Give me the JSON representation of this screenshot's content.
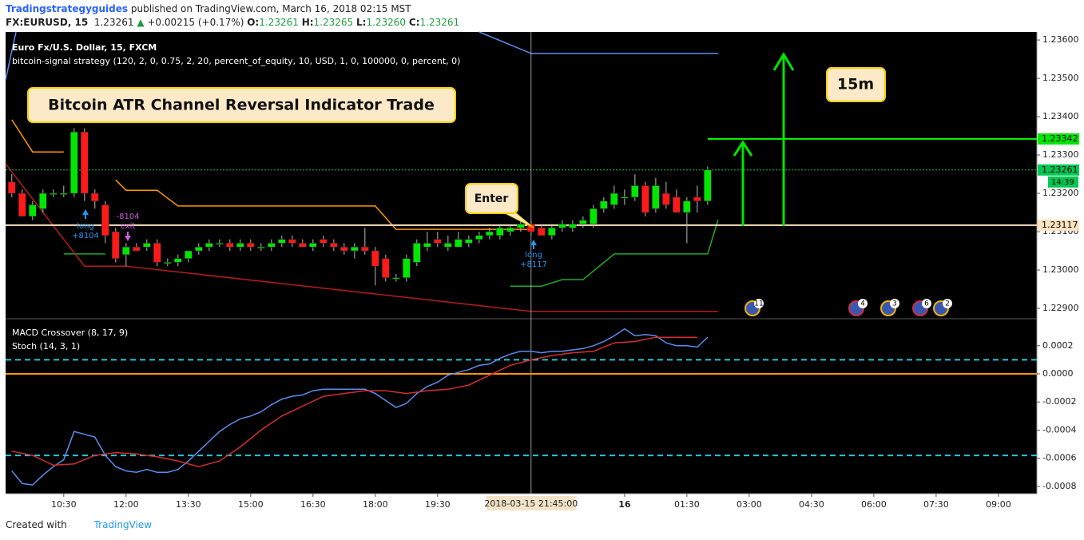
{
  "header": {
    "author": "Tradingstrategyguides",
    "published": "published on TradingView.com, March 16, 2018 02:15 MST",
    "symbol": "FX:EURUSD, 15",
    "last": "1.23261",
    "change": "+0.00215 (+0.17%)",
    "ohlc": [
      {
        "label": "O:",
        "value": "1.23261"
      },
      {
        "label": "H:",
        "value": "1.23265"
      },
      {
        "label": "L:",
        "value": "1.23260"
      },
      {
        "label": "C:",
        "value": "1.23261"
      }
    ]
  },
  "footer": {
    "text": "Created with",
    "brand": "TradingView"
  },
  "chart_data": [
    {
      "type": "candlestick",
      "title": "Euro Fx/U.S. Dollar, 15, FXCM",
      "subtitle": "bitcoin-signal strategy (120, 2, 0, 0.75, 2, 20, percent_of_equity, 10, USD, 1, 0, 100000, 0, percent, 0)",
      "x": [
        0,
        1,
        2,
        3,
        4,
        5,
        6,
        7,
        8,
        9,
        10,
        11,
        12,
        13,
        14,
        15,
        16,
        17,
        18,
        19,
        20,
        21,
        22,
        23,
        24,
        25,
        26,
        27,
        28,
        29,
        30,
        31,
        32,
        33,
        34,
        35,
        36,
        37,
        38,
        39,
        40,
        41,
        42,
        43,
        44,
        45,
        46,
        47,
        48,
        49,
        50,
        51,
        52,
        53,
        54,
        55,
        56,
        57,
        58,
        59,
        60,
        61,
        62,
        63,
        64,
        65,
        66,
        67
      ],
      "open": [
        1.2323,
        1.232,
        1.2314,
        1.2316,
        1.232,
        1.232,
        1.232,
        1.2336,
        1.232,
        1.2317,
        1.231,
        1.2304,
        1.2306,
        1.2306,
        1.2307,
        1.2302,
        1.2302,
        1.2303,
        1.2305,
        1.2306,
        1.2307,
        1.2307,
        1.2306,
        1.2307,
        1.2306,
        1.2306,
        1.2307,
        1.2308,
        1.2307,
        1.2306,
        1.2308,
        1.2307,
        1.2306,
        1.2305,
        1.2306,
        1.2305,
        1.2303,
        1.2298,
        1.2298,
        1.2302,
        1.2306,
        1.2308,
        1.2306,
        1.2306,
        1.2307,
        1.2308,
        1.2309,
        1.2309,
        1.231,
        1.2311,
        1.2312,
        1.2311,
        1.2309,
        1.2311,
        1.2311,
        1.2312,
        1.2312,
        1.2316,
        1.2317,
        1.2319,
        1.2319,
        1.2322,
        1.2316,
        1.232,
        1.2319,
        1.2315,
        1.2319,
        1.2318
      ],
      "high": [
        1.2325,
        1.2321,
        1.2318,
        1.2321,
        1.2321,
        1.2322,
        1.2337,
        1.2337,
        1.2321,
        1.2318,
        1.2311,
        1.2307,
        1.2307,
        1.2308,
        1.2308,
        1.2303,
        1.2304,
        1.2305,
        1.2307,
        1.2308,
        1.2308,
        1.2308,
        1.2308,
        1.2308,
        1.2307,
        1.2308,
        1.2309,
        1.2309,
        1.2308,
        1.2308,
        1.2309,
        1.2308,
        1.2307,
        1.2307,
        1.2311,
        1.2306,
        1.2304,
        1.2299,
        1.2304,
        1.2308,
        1.231,
        1.231,
        1.2309,
        1.231,
        1.2309,
        1.231,
        1.2311,
        1.2312,
        1.2312,
        1.2313,
        1.2313,
        1.2312,
        1.2312,
        1.2313,
        1.2313,
        1.2314,
        1.2317,
        1.2319,
        1.2322,
        1.2321,
        1.2325,
        1.2323,
        1.2324,
        1.2323,
        1.2321,
        1.2319,
        1.2322,
        1.2327
      ],
      "low": [
        1.2319,
        1.2314,
        1.2313,
        1.2315,
        1.2319,
        1.2319,
        1.2319,
        1.2318,
        1.2316,
        1.2307,
        1.2302,
        1.2301,
        1.2305,
        1.2305,
        1.2301,
        1.2301,
        1.2301,
        1.2302,
        1.2304,
        1.2305,
        1.2306,
        1.2305,
        1.2305,
        1.2305,
        1.2305,
        1.2305,
        1.2306,
        1.2306,
        1.2306,
        1.2305,
        1.2306,
        1.2305,
        1.2304,
        1.2303,
        1.2304,
        1.2296,
        1.2297,
        1.2297,
        1.2297,
        1.2301,
        1.2305,
        1.2306,
        1.2305,
        1.2306,
        1.2306,
        1.2307,
        1.2308,
        1.2308,
        1.2309,
        1.231,
        1.2309,
        1.2309,
        1.2308,
        1.231,
        1.231,
        1.2311,
        1.2311,
        1.2315,
        1.2316,
        1.2317,
        1.2318,
        1.2314,
        1.2315,
        1.2316,
        1.2315,
        1.2307,
        1.2315,
        1.2317
      ],
      "close": [
        1.232,
        1.2314,
        1.2317,
        1.232,
        1.232,
        1.232,
        1.2336,
        1.232,
        1.2318,
        1.2309,
        1.2303,
        1.2306,
        1.2305,
        1.2307,
        1.2302,
        1.2302,
        1.2303,
        1.2305,
        1.2306,
        1.2307,
        1.2307,
        1.2306,
        1.2307,
        1.2306,
        1.2306,
        1.2307,
        1.2308,
        1.2307,
        1.2306,
        1.2307,
        1.2307,
        1.2306,
        1.2305,
        1.2306,
        1.2305,
        1.2301,
        1.2298,
        1.2298,
        1.2303,
        1.2307,
        1.2307,
        1.2307,
        1.2307,
        1.2308,
        1.2308,
        1.2309,
        1.231,
        1.2311,
        1.2311,
        1.2312,
        1.231,
        1.2309,
        1.2311,
        1.2312,
        1.2312,
        1.2313,
        1.2316,
        1.2318,
        1.232,
        1.2319,
        1.2322,
        1.2315,
        1.2322,
        1.2317,
        1.2315,
        1.2318,
        1.2318,
        1.23261
      ],
      "up_color": "#00e600",
      "down_color": "#ff1a1a",
      "xlim": [
        -0.6,
        98.7
      ],
      "xticks": [
        {
          "value": 5,
          "label": "10:30"
        },
        {
          "value": 11,
          "label": "12:00"
        },
        {
          "value": 17,
          "label": "13:30"
        },
        {
          "value": 23,
          "label": "15:00"
        },
        {
          "value": 29,
          "label": "16:30"
        },
        {
          "value": 35,
          "label": "18:00"
        },
        {
          "value": 41,
          "label": "19:30"
        },
        {
          "value": 59,
          "label": "16"
        },
        {
          "value": 65,
          "label": "01:30"
        },
        {
          "value": 71,
          "label": "03:00"
        },
        {
          "value": 77,
          "label": "04:30"
        },
        {
          "value": 83,
          "label": "06:00"
        },
        {
          "value": 89,
          "label": "07:30"
        },
        {
          "value": 95,
          "label": "09:00"
        }
      ],
      "ylim": [
        1.22875,
        1.23621
      ],
      "yticks": [
        {
          "value": 1.229,
          "label": "1.22900"
        },
        {
          "value": 1.23,
          "label": "1.23000"
        },
        {
          "value": 1.231,
          "label": "1.23100"
        },
        {
          "value": 1.232,
          "label": "1.23200"
        },
        {
          "value": 1.233,
          "label": "1.23300"
        },
        {
          "value": 1.234,
          "label": "1.23400"
        },
        {
          "value": 1.235,
          "label": "1.23500"
        },
        {
          "value": 1.236,
          "label": "1.23600"
        }
      ],
      "overlays": [
        {
          "color": "#ff9800",
          "x": [
            0,
            2,
            5,
            8,
            10,
            11,
            14,
            16,
            35,
            37,
            50
          ],
          "values": [
            1.23392,
            1.23308,
            1.23308,
            null,
            1.23235,
            1.23208,
            1.23208,
            1.23167,
            1.23167,
            1.23106,
            1.23106
          ]
        },
        {
          "color": "#1faa2c",
          "x": [
            5,
            9,
            20,
            48,
            51,
            53,
            55,
            58,
            67,
            68
          ],
          "values": [
            1.23042,
            1.23042,
            null,
            1.22958,
            1.22958,
            1.22975,
            1.22975,
            1.23042,
            1.23042,
            1.23131
          ]
        },
        {
          "color": "#b71c1c",
          "x": [
            -0.6,
            7,
            11,
            50,
            68
          ],
          "values": [
            1.23277,
            1.2301,
            1.2301,
            1.22892,
            1.22892
          ]
        },
        {
          "color": "#5b8def",
          "x": [
            -0.6,
            0.4,
            20,
            45,
            50,
            68
          ],
          "values": [
            1.23496,
            1.23621,
            null,
            1.23621,
            1.23565,
            1.23565
          ]
        }
      ],
      "price_lines": [
        {
          "value": 1.23342,
          "color": "#00ff00"
        },
        {
          "value": 1.23261,
          "color": "#00c853"
        },
        {
          "value": 1.23117,
          "color": "#fbe3c0"
        }
      ],
      "countdown": "14:39",
      "crosshair": {
        "x": 50,
        "label": "2018-03-15 21:45:00"
      },
      "annotations": {
        "headline": "Bitcoin ATR Channel Reversal Indicator Trade",
        "timeframe": "15m",
        "entry": "Enter",
        "signals": [
          [
            "long",
            "+8104"
          ],
          [
            "-8104",
            "exit"
          ],
          [
            "long",
            "+8117"
          ]
        ],
        "events": [
          "11",
          "4",
          "3",
          "6",
          "2"
        ]
      }
    },
    {
      "type": "line",
      "title": "MACD Crossover (8, 17, 9)",
      "subtitle": "Stoch (14, 3, 1)",
      "series": [
        {
          "color": "#5b8def",
          "x": [
            0,
            1,
            2,
            3,
            4,
            5,
            6,
            7,
            8,
            9,
            10,
            11,
            12,
            13,
            14,
            15,
            16,
            17,
            18,
            19,
            20,
            21,
            22,
            23,
            24,
            25,
            26,
            27,
            28,
            29,
            30,
            31,
            32,
            33,
            34,
            35,
            36,
            37,
            38,
            39,
            40,
            41,
            42,
            43,
            44,
            45,
            46,
            47,
            48,
            49,
            50,
            51,
            52,
            53,
            54,
            55,
            56,
            57,
            58,
            59,
            60,
            61,
            62,
            63,
            64,
            65,
            66,
            67
          ],
          "values": [
            -0.00069,
            -0.00078,
            -0.00079,
            -0.00072,
            -0.00066,
            -0.00061,
            -0.00041,
            -0.00043,
            -0.00045,
            -0.00058,
            -0.00066,
            -0.00069,
            -0.0007,
            -0.00068,
            -0.0007,
            -0.0007,
            -0.00068,
            -0.00062,
            -0.00055,
            -0.00048,
            -0.00041,
            -0.00036,
            -0.00032,
            -0.0003,
            -0.00027,
            -0.00022,
            -0.00018,
            -0.00016,
            -0.00015,
            -0.00012,
            -0.00011,
            -0.00011,
            -0.00011,
            -0.00011,
            -0.00011,
            -0.00014,
            -0.00019,
            -0.00024,
            -0.00021,
            -0.00014,
            -9e-05,
            -6e-05,
            -1e-05,
            1e-05,
            3e-05,
            6e-05,
            7e-05,
            0.00011,
            0.00014,
            0.00016,
            0.00016,
            0.00015,
            0.00016,
            0.00016,
            0.00017,
            0.00018,
            0.0002,
            0.00023,
            0.00027,
            0.00032,
            0.00027,
            0.00028,
            0.00027,
            0.00022,
            0.0002,
            0.0002,
            0.00019,
            0.00026
          ]
        },
        {
          "color": "#d32f2f",
          "x": [
            0,
            2,
            4,
            6,
            8,
            10,
            12,
            14,
            16,
            18,
            20,
            22,
            24,
            26,
            28,
            30,
            32,
            34,
            36,
            38,
            40,
            42,
            44,
            46,
            48,
            50,
            52,
            54,
            56,
            58,
            60,
            62,
            64,
            66
          ],
          "values": [
            -0.00055,
            -0.00058,
            -0.00065,
            -0.00064,
            -0.00058,
            -0.00056,
            -0.00057,
            -0.00059,
            -0.00062,
            -0.00066,
            -0.00062,
            -0.00052,
            -0.0004,
            -0.0003,
            -0.00023,
            -0.00016,
            -0.00014,
            -0.00012,
            -0.00012,
            -0.00014,
            -0.00012,
            -0.00011,
            -8e-05,
            -1e-05,
            6e-05,
            0.0001,
            0.00013,
            0.00015,
            0.00016,
            0.00022,
            0.00023,
            0.00026,
            0.00026,
            0.00026
          ]
        }
      ],
      "ylim": [
        -0.000852,
        0.000386
      ],
      "yticks": [
        -0.0008,
        -0.0006,
        -0.0004,
        -0.0002,
        {
          "value": 0,
          "label": "0.0000"
        },
        0.0002
      ],
      "levels": [
        {
          "value": 0.0001,
          "color": "#26c6da",
          "dashed": true
        },
        {
          "value": -0.00058,
          "color": "#26c6da",
          "dashed": true
        },
        {
          "value": 0,
          "color": "#ff9800",
          "dashed": false
        }
      ]
    }
  ]
}
